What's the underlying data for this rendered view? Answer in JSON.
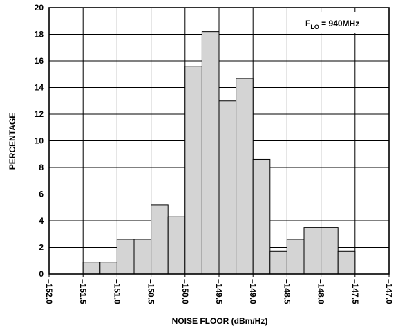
{
  "chart_data": {
    "type": "bar",
    "title": "",
    "xlabel": "NOISE FLOOR (dBm/Hz)",
    "ylabel": "PERCENTAGE",
    "annotation": {
      "prefix": "F",
      "subscript": "LO",
      "suffix": " = 940MHz"
    },
    "xlim": [
      -152.0,
      -147.0
    ],
    "ylim": [
      0,
      20
    ],
    "x_ticks": [
      "-152.0",
      "-151.5",
      "-151.0",
      "-150.5",
      "-150.0",
      "-149.5",
      "-149.0",
      "-148.5",
      "-148.0",
      "-147.5",
      "-147.0"
    ],
    "y_ticks": [
      "0",
      "2",
      "4",
      "6",
      "8",
      "10",
      "12",
      "14",
      "16",
      "18",
      "20"
    ],
    "bin_width": 0.25,
    "bins": [
      {
        "start": -151.5,
        "value": 0.9
      },
      {
        "start": -151.25,
        "value": 0.9
      },
      {
        "start": -151.0,
        "value": 2.6
      },
      {
        "start": -150.75,
        "value": 2.6
      },
      {
        "start": -150.5,
        "value": 5.2
      },
      {
        "start": -150.25,
        "value": 4.3
      },
      {
        "start": -150.0,
        "value": 15.6
      },
      {
        "start": -149.75,
        "value": 18.2
      },
      {
        "start": -149.5,
        "value": 13.0
      },
      {
        "start": -149.25,
        "value": 14.7
      },
      {
        "start": -149.0,
        "value": 8.6
      },
      {
        "start": -148.75,
        "value": 1.7
      },
      {
        "start": -148.5,
        "value": 2.6
      },
      {
        "start": -148.25,
        "value": 3.5
      },
      {
        "start": -148.0,
        "value": 3.5
      },
      {
        "start": -147.75,
        "value": 1.7
      }
    ],
    "grid": true,
    "bar_fill": "#d4d4d4",
    "bar_stroke": "#000000",
    "grid_color": "#000000"
  }
}
